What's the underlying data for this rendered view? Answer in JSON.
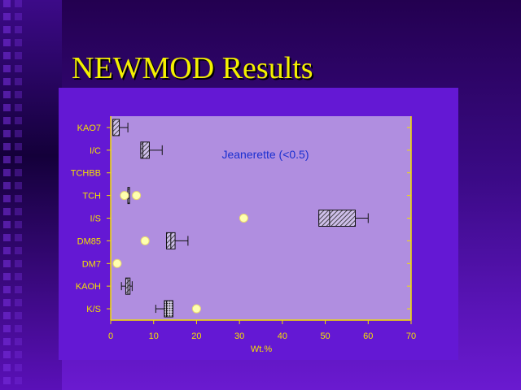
{
  "slide_title": "NEWMOD Results",
  "colors": {
    "title": "#f4f000",
    "plot_bg": "#b08ee0",
    "axis": "#f4e000"
  },
  "chart_data": {
    "type": "box",
    "title": "Jeanerette (<0.5)",
    "xlabel": "Wt.%",
    "ylabel": "",
    "xlim": [
      0,
      70
    ],
    "xticks": [
      "0",
      "10",
      "20",
      "30",
      "40",
      "50",
      "60",
      "70"
    ],
    "categories": [
      "KAO7",
      "I/C",
      "TCHBB",
      "TCH",
      "I/S",
      "DM85",
      "DM7",
      "KAOH",
      "K/S"
    ],
    "boxes": [
      {
        "category": "KAO7",
        "whisker_low": 0.5,
        "q1": 0.5,
        "median": 0.5,
        "q3": 2,
        "whisker_high": 4,
        "outliers": []
      },
      {
        "category": "I/C",
        "whisker_low": 7,
        "q1": 7,
        "median": 7.5,
        "q3": 9,
        "whisker_high": 12,
        "outliers": []
      },
      {
        "category": "TCHBB",
        "outliers": []
      },
      {
        "category": "TCH",
        "whisker_low": 4,
        "q1": 4,
        "median": 4,
        "q3": 4,
        "whisker_high": 4,
        "outliers": [
          3.2,
          6
        ]
      },
      {
        "category": "I/S",
        "whisker_low": 48.5,
        "q1": 48.5,
        "median": 51,
        "q3": 57,
        "whisker_high": 60,
        "outliers": [
          31
        ]
      },
      {
        "category": "DM85",
        "whisker_low": 13,
        "q1": 13,
        "median": 14,
        "q3": 15,
        "whisker_high": 18,
        "outliers": [
          8
        ]
      },
      {
        "category": "DM7",
        "outliers": [
          1.5
        ]
      },
      {
        "category": "KAOH",
        "whisker_low": 2.5,
        "q1": 3.5,
        "median": 4,
        "q3": 4.5,
        "whisker_high": 5,
        "outliers": []
      },
      {
        "category": "K/S",
        "whisker_low": 10.5,
        "q1": 12.5,
        "median": 13,
        "q3": 14.5,
        "whisker_high": 14.5,
        "outliers": [
          20
        ]
      }
    ]
  }
}
